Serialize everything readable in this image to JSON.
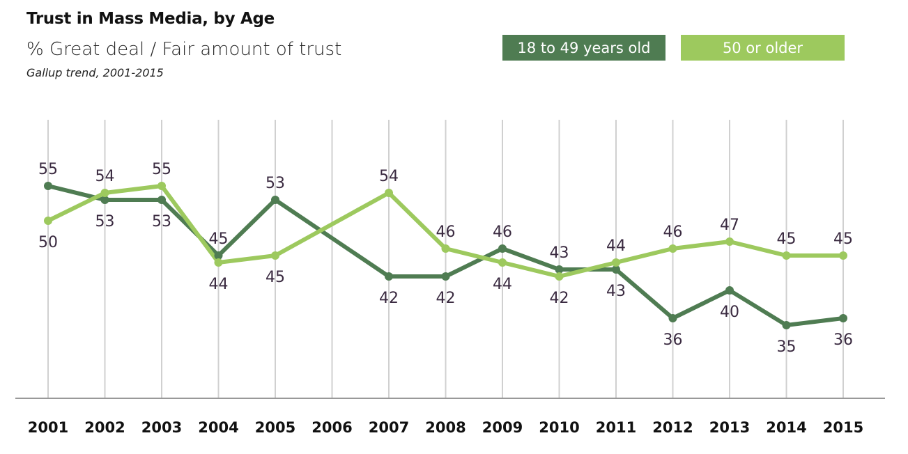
{
  "chart_data": {
    "type": "line",
    "title": "Trust in Mass Media, by Age",
    "subtitle": "% Great deal / Fair amount of trust",
    "note": "Gallup trend, 2001-2015",
    "x": [
      "2001",
      "2002",
      "2003",
      "2004",
      "2005",
      "2006",
      "2007",
      "2008",
      "2009",
      "2010",
      "2011",
      "2012",
      "2013",
      "2014",
      "2015"
    ],
    "ylim": [
      24.5,
      64.5
    ],
    "grid": "vertical",
    "legend_position": "top-right",
    "series": [
      {
        "name": "18 to 49 years old",
        "color": "#4f7c52",
        "values": [
          55,
          53,
          53,
          45,
          53,
          null,
          42,
          42,
          46,
          43,
          43,
          36,
          40,
          35,
          36
        ]
      },
      {
        "name": "50 or older",
        "color": "#9dc95e",
        "values": [
          50,
          54,
          55,
          44,
          45,
          null,
          54,
          46,
          44,
          42,
          44,
          46,
          47,
          45,
          45
        ]
      }
    ]
  }
}
